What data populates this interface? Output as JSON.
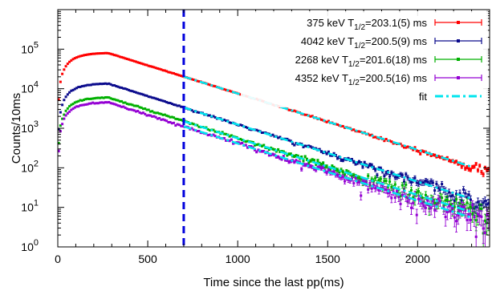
{
  "chart_data": {
    "type": "scatter",
    "xlabel": "Time since the last pp(ms)",
    "ylabel": "Counts/10ms",
    "xlim": [
      0,
      2400
    ],
    "ylim": [
      1,
      1000000
    ],
    "yscale": "log",
    "x_ticks": [
      "0",
      "500",
      "1000",
      "1500",
      "2000"
    ],
    "y_ticks": [
      {
        "base": "10",
        "exp": "0"
      },
      {
        "base": "10",
        "exp": "1"
      },
      {
        "base": "10",
        "exp": "2"
      },
      {
        "base": "10",
        "exp": "3"
      },
      {
        "base": "10",
        "exp": "4"
      },
      {
        "base": "10",
        "exp": "5"
      }
    ],
    "legend_position": "top-right",
    "vertical_marker_x": 700,
    "series": [
      {
        "name_main": "375 keV T",
        "name_sub": "1/2",
        "name_rest": "=203.1(5) ms",
        "color": "#ff0000",
        "peak_time": 280,
        "peak_counts": 80000,
        "half_life_ms": 203.1
      },
      {
        "name_main": "4042 keV T",
        "name_sub": "1/2",
        "name_rest": "=200.5(9) ms",
        "color": "#0a0a8c",
        "peak_time": 280,
        "peak_counts": 13500,
        "half_life_ms": 200.5
      },
      {
        "name_main": "2268 keV T",
        "name_sub": "1/2",
        "name_rest": "=201.6(18) ms",
        "color": "#00b000",
        "peak_time": 280,
        "peak_counts": 6000,
        "half_life_ms": 201.6
      },
      {
        "name_main": "4352 keV T",
        "name_sub": "1/2",
        "name_rest": "=200.5(16) ms",
        "color": "#9400d3",
        "peak_time": 280,
        "peak_counts": 4500,
        "half_life_ms": 200.5
      }
    ],
    "fit": {
      "name": "fit",
      "color": "#00e5ee",
      "x_start": 700,
      "x_end": 2300
    }
  }
}
